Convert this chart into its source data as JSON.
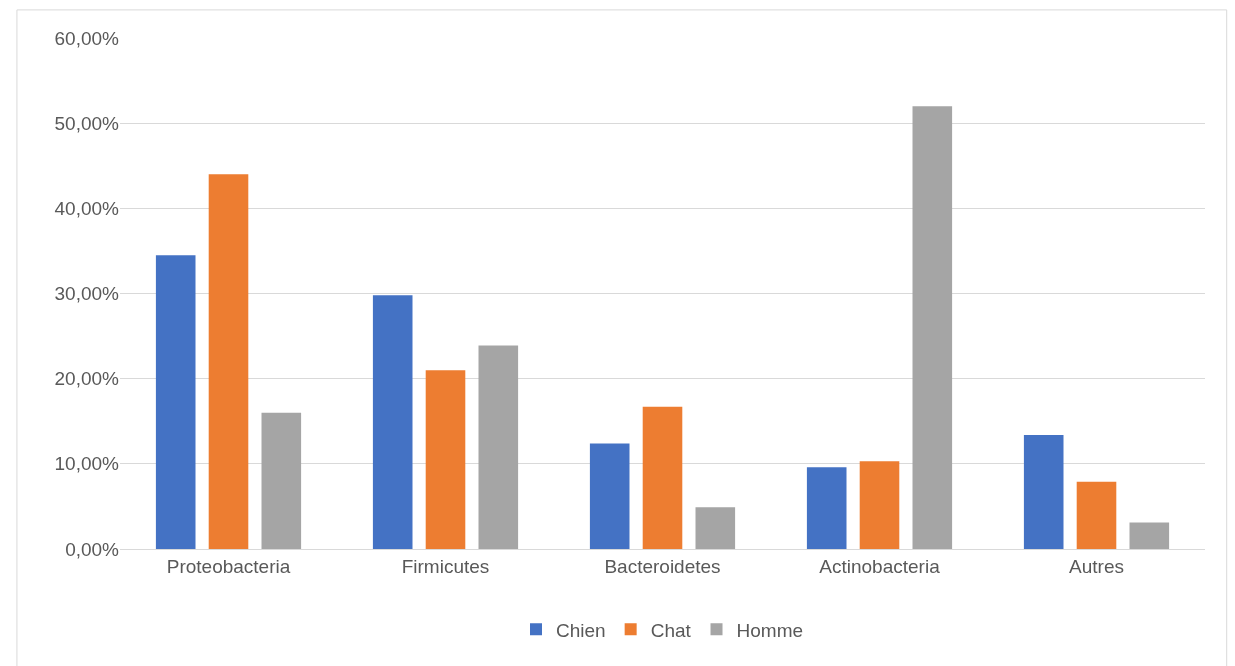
{
  "chart_data": {
    "type": "bar",
    "categories": [
      "Proteobacteria",
      "Firmicutes",
      "Bacteroidetes",
      "Actinobacteria",
      "Autres"
    ],
    "series": [
      {
        "name": "Chien",
        "color": "#4472c4",
        "values": [
          34.5,
          29.8,
          12.4,
          9.6,
          13.4
        ]
      },
      {
        "name": "Chat",
        "color": "#ed7d31",
        "values": [
          44.0,
          21.0,
          16.7,
          10.3,
          7.9
        ]
      },
      {
        "name": "Homme",
        "color": "#a5a5a5",
        "values": [
          16.0,
          23.9,
          4.9,
          52.0,
          3.1
        ]
      }
    ],
    "ylim": [
      0,
      60
    ],
    "yticks": [
      {
        "value": 0,
        "label": "0,00%"
      },
      {
        "value": 10,
        "label": "10,00%"
      },
      {
        "value": 20,
        "label": "20,00%"
      },
      {
        "value": 30,
        "label": "30,00%"
      },
      {
        "value": 40,
        "label": "40,00%"
      },
      {
        "value": 50,
        "label": "50,00%"
      },
      {
        "value": 60,
        "label": "60,00%"
      }
    ],
    "grid": "y",
    "legend": "bottom"
  }
}
